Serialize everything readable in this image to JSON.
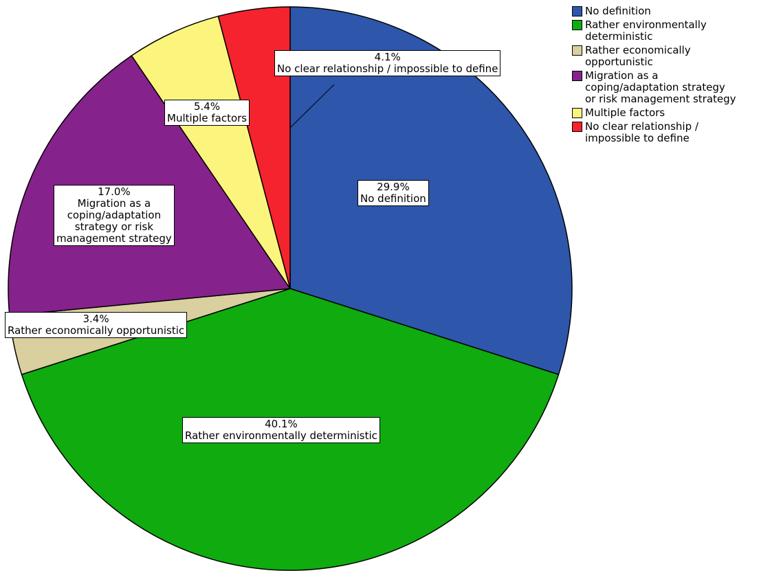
{
  "chart_data": {
    "type": "pie",
    "legend_position": "top-right",
    "slices": [
      {
        "name": "No definition",
        "value": 29.9,
        "value_label": "29.9%",
        "slice_label": "No definition",
        "color": "#2e56ab"
      },
      {
        "name": "Rather environmentally deterministic",
        "value": 40.1,
        "value_label": "40.1%",
        "slice_label": "Rather environmentally deterministic",
        "color": "#0fab0f"
      },
      {
        "name": "Rather economically opportunistic",
        "value": 3.4,
        "value_label": "3.4%",
        "slice_label": "Rather economically opportunistic",
        "color": "#d9cf9f"
      },
      {
        "name": "Migration as a coping/adaptation strategy or risk management strategy",
        "value": 17.0,
        "value_label": "17.0%",
        "slice_label": "Migration as a coping/adaptation strategy or risk management strategy",
        "color": "#86228c"
      },
      {
        "name": "Multiple factors",
        "value": 5.4,
        "value_label": "5.4%",
        "slice_label": "Multiple factors",
        "color": "#fbf57d"
      },
      {
        "name": "No clear relationship / impossible to define",
        "value": 4.1,
        "value_label": "4.1%",
        "slice_label": "No clear relationship / impossible to define",
        "color": "#f5232e"
      }
    ]
  }
}
